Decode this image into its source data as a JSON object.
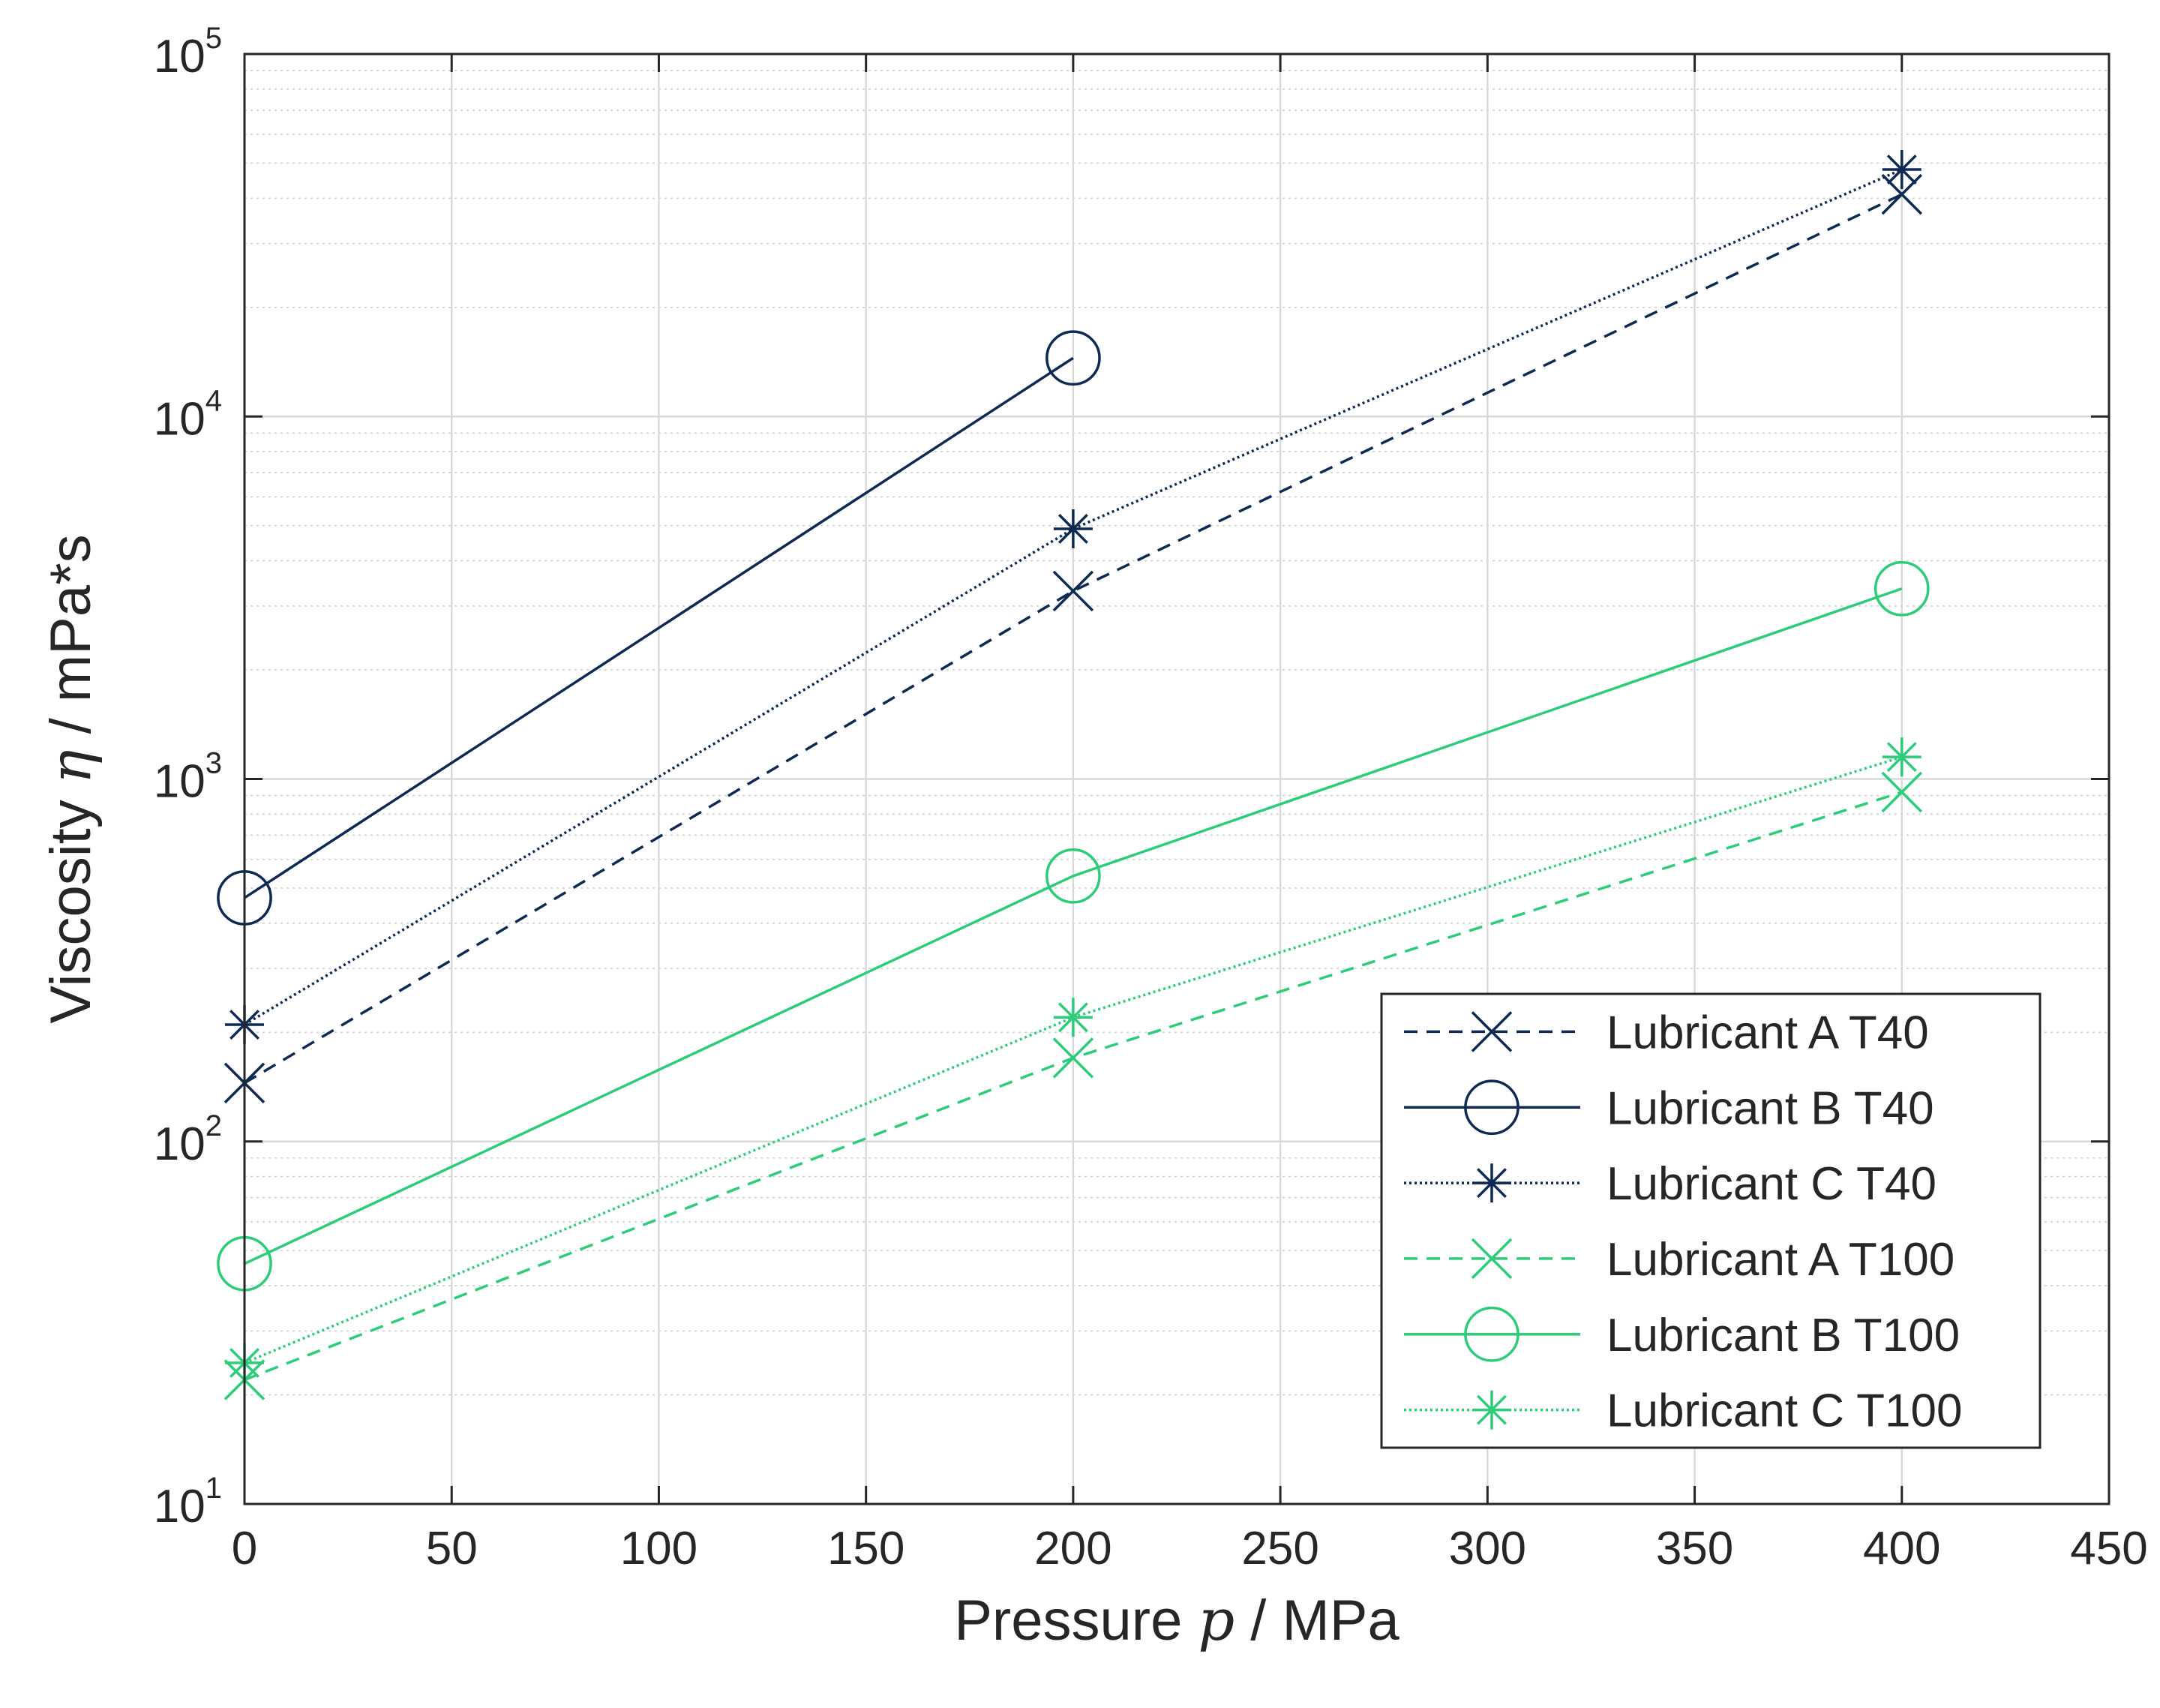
{
  "chart_data": {
    "type": "line",
    "xlabel": {
      "prefix": "Pressure ",
      "symbol": "p",
      "suffix": " / MPa"
    },
    "ylabel": {
      "prefix": "Viscosity ",
      "symbol": "η",
      "suffix": " / mPa*s"
    },
    "xlim": [
      0,
      450
    ],
    "ylim": [
      10,
      100000
    ],
    "yscale": "log",
    "grid": true,
    "minor_grid": true,
    "x_ticks": [
      0,
      50,
      100,
      150,
      200,
      250,
      300,
      350,
      400,
      450
    ],
    "x_tick_labels": [
      "0",
      "50",
      "100",
      "150",
      "200",
      "250",
      "300",
      "350",
      "400",
      "450"
    ],
    "y_ticks": [
      10,
      100,
      1000,
      10000,
      100000
    ],
    "y_tick_labels": [
      {
        "base": "10",
        "exp": "1"
      },
      {
        "base": "10",
        "exp": "2"
      },
      {
        "base": "10",
        "exp": "3"
      },
      {
        "base": "10",
        "exp": "4"
      },
      {
        "base": "10",
        "exp": "5"
      }
    ],
    "legend_position": "bottom-right",
    "series": [
      {
        "name": "Lubricant A T40",
        "color": "#0e2a52",
        "dash": "dashed",
        "marker": "x",
        "x": [
          0,
          200,
          400
        ],
        "y": [
          145,
          3300,
          41000
        ]
      },
      {
        "name": "Lubricant B T40",
        "color": "#0e2a52",
        "dash": "solid",
        "marker": "o",
        "x": [
          0,
          200
        ],
        "y": [
          470,
          14500
        ]
      },
      {
        "name": "Lubricant C T40",
        "color": "#0e2a52",
        "dash": "dotted",
        "marker": "*",
        "x": [
          0,
          200,
          400
        ],
        "y": [
          210,
          4900,
          48000
        ]
      },
      {
        "name": "Lubricant A T100",
        "color": "#2ecc7a",
        "dash": "dashed",
        "marker": "x",
        "x": [
          0,
          200,
          400
        ],
        "y": [
          22,
          170,
          920
        ]
      },
      {
        "name": "Lubricant B T100",
        "color": "#2ecc7a",
        "dash": "solid",
        "marker": "o",
        "x": [
          0,
          200,
          400
        ],
        "y": [
          46,
          540,
          3350
        ]
      },
      {
        "name": "Lubricant C T100",
        "color": "#2ecc7a",
        "dash": "dotted",
        "marker": "*",
        "x": [
          0,
          200,
          400
        ],
        "y": [
          24.5,
          220,
          1150
        ]
      }
    ]
  }
}
